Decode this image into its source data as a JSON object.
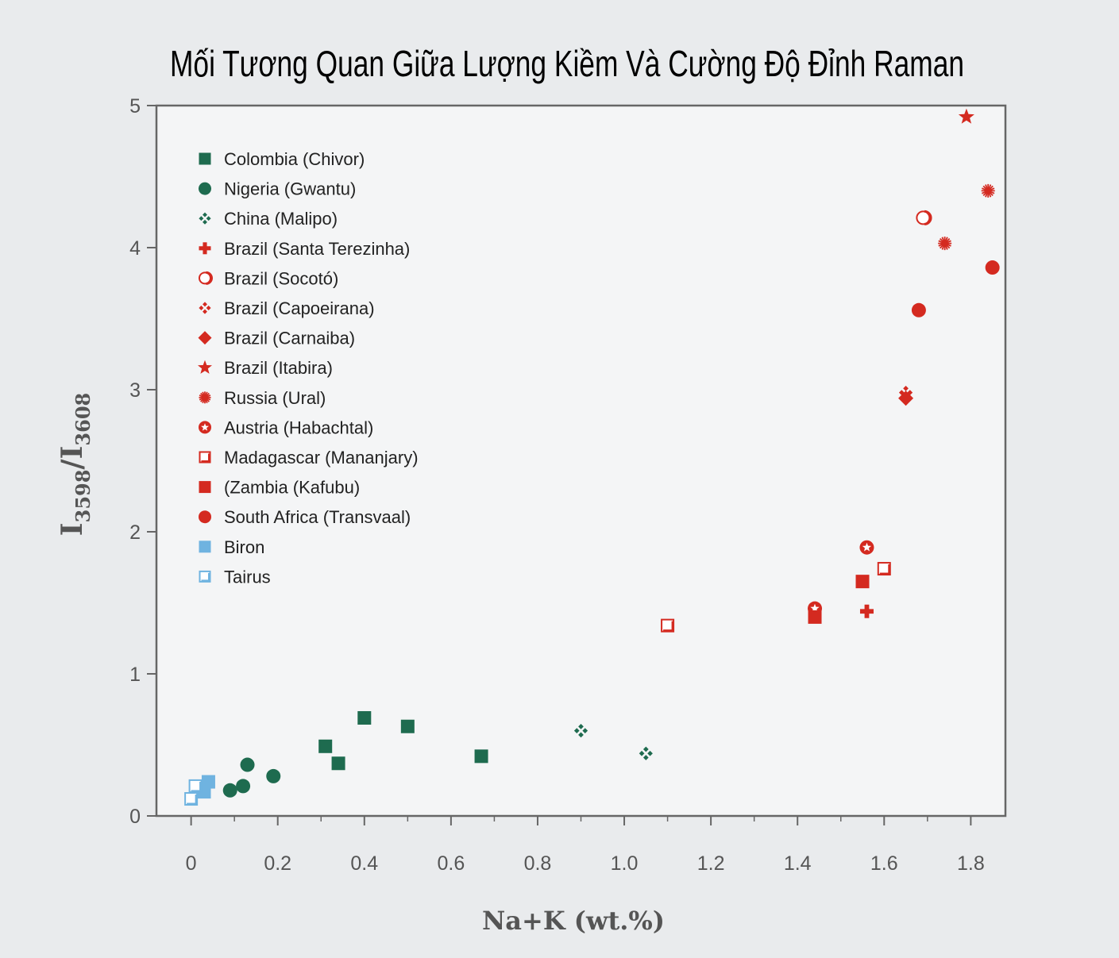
{
  "colors": {
    "green": "#1e6b4f",
    "red": "#d42a20",
    "blue": "#6fb3e0",
    "axis": "#666666"
  },
  "chart_data": {
    "type": "scatter",
    "title": "Mối Tương Quan Giữa Lượng Kiềm Và Cường Độ Đỉnh Raman",
    "xlabel": "Na+K (wt.%)",
    "ylabel": "I3598/I3608",
    "ylabel_main": "I",
    "ylabel_sub1": "3598",
    "ylabel_mid": "/I",
    "ylabel_sub2": "3608",
    "xlim": [
      -0.08,
      1.88
    ],
    "ylim": [
      0,
      5
    ],
    "xticks": [
      0,
      0.2,
      0.4,
      0.6,
      0.8,
      1.0,
      1.2,
      1.4,
      1.6,
      1.8
    ],
    "xtick_labels": [
      "0",
      "0.2",
      "0.4",
      "0.6",
      "0.8",
      "1.0",
      "1.2",
      "1.4",
      "1.6",
      "1.8"
    ],
    "yticks": [
      0,
      1,
      2,
      3,
      4,
      5
    ],
    "ytick_labels": [
      "0",
      "1",
      "2",
      "3",
      "4",
      "5"
    ],
    "grid": false,
    "legend_position": "top-left",
    "series": [
      {
        "name": "Colombia (Chivor)",
        "marker": "square-filled",
        "color": "#1e6b4f",
        "x": [
          0.31,
          0.34,
          0.4,
          0.5,
          0.67
        ],
        "y": [
          0.49,
          0.37,
          0.69,
          0.63,
          0.42
        ]
      },
      {
        "name": "Nigeria (Gwantu)",
        "marker": "circle-filled",
        "color": "#1e6b4f",
        "x": [
          0.09,
          0.12,
          0.13,
          0.19
        ],
        "y": [
          0.18,
          0.21,
          0.36,
          0.28
        ]
      },
      {
        "name": "China (Malipo)",
        "marker": "cross-diamond",
        "color": "#1e6b4f",
        "x": [
          0.9,
          1.05
        ],
        "y": [
          0.6,
          0.44
        ]
      },
      {
        "name": "Brazil (Santa Terezinha)",
        "marker": "plus",
        "color": "#d42a20",
        "x": [
          1.56
        ],
        "y": [
          1.44
        ]
      },
      {
        "name": "Brazil (Socotó)",
        "marker": "circle-open",
        "color": "#d42a20",
        "x": [
          1.69
        ],
        "y": [
          4.21
        ]
      },
      {
        "name": "Brazil (Capoeirana)",
        "marker": "cross-diamond",
        "color": "#d42a20",
        "x": [
          1.65
        ],
        "y": [
          2.98
        ]
      },
      {
        "name": "Brazil (Carnaiba)",
        "marker": "diamond-filled",
        "color": "#d42a20",
        "x": [
          1.65
        ],
        "y": [
          2.94
        ]
      },
      {
        "name": "Brazil (Itabira)",
        "marker": "star",
        "color": "#d42a20",
        "x": [
          1.79
        ],
        "y": [
          4.92
        ]
      },
      {
        "name": "Russia (Ural)",
        "marker": "starburst",
        "color": "#d42a20",
        "x": [
          1.74,
          1.84
        ],
        "y": [
          4.03,
          4.4
        ]
      },
      {
        "name": "Austria (Habachtal)",
        "marker": "star-in-circle",
        "color": "#d42a20",
        "x": [
          1.44,
          1.56
        ],
        "y": [
          1.46,
          1.89
        ]
      },
      {
        "name": "Madagascar (Mananjary)",
        "marker": "square-open",
        "color": "#d42a20",
        "x": [
          1.1,
          1.6
        ],
        "y": [
          1.34,
          1.74
        ]
      },
      {
        "name": "(Zambia (Kafubu)",
        "marker": "square-filled",
        "color": "#d42a20",
        "x": [
          1.44,
          1.55
        ],
        "y": [
          1.4,
          1.65
        ]
      },
      {
        "name": "South Africa (Transvaal)",
        "marker": "circle-filled",
        "color": "#d42a20",
        "x": [
          1.68,
          1.85
        ],
        "y": [
          3.56,
          3.86
        ]
      },
      {
        "name": "Biron",
        "marker": "square-filled",
        "color": "#6fb3e0",
        "x": [
          0.03,
          0.04
        ],
        "y": [
          0.17,
          0.24
        ]
      },
      {
        "name": "Tairus",
        "marker": "square-open",
        "color": "#6fb3e0",
        "x": [
          0.0,
          0.01
        ],
        "y": [
          0.12,
          0.21
        ]
      }
    ]
  }
}
